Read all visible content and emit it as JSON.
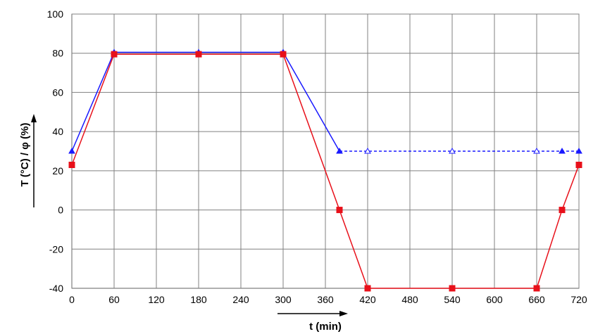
{
  "chart_data": {
    "type": "line",
    "title": "",
    "xlabel": "t (min)",
    "ylabel": "T (°C) / φ (%)",
    "xlim": [
      0,
      720
    ],
    "ylim": [
      -40,
      100
    ],
    "xticks": [
      0,
      60,
      120,
      180,
      240,
      300,
      360,
      420,
      480,
      540,
      600,
      660,
      720
    ],
    "yticks": [
      -40,
      -20,
      0,
      20,
      40,
      60,
      80,
      100
    ],
    "grid": true,
    "legend": "none",
    "series": [
      {
        "color": "#1a1aff",
        "marker": "triangle",
        "segments": [
          {
            "style": "solid",
            "x": [
              0,
              60,
              180,
              300,
              380
            ],
            "y": [
              30,
              80.5,
              80.5,
              80.5,
              30
            ]
          },
          {
            "style": "dashed",
            "x": [
              380,
              420,
              540,
              660,
              696,
              720
            ],
            "y": [
              30,
              30,
              30,
              30,
              30,
              30
            ]
          }
        ],
        "points": [
          {
            "x": 0,
            "y": 30,
            "filled": true
          },
          {
            "x": 60,
            "y": 80.5,
            "filled": true
          },
          {
            "x": 180,
            "y": 80.5,
            "filled": true
          },
          {
            "x": 300,
            "y": 80.5,
            "filled": true
          },
          {
            "x": 380,
            "y": 30,
            "filled": true
          },
          {
            "x": 420,
            "y": 30,
            "filled": false
          },
          {
            "x": 540,
            "y": 30,
            "filled": false
          },
          {
            "x": 660,
            "y": 30,
            "filled": false
          },
          {
            "x": 696,
            "y": 30,
            "filled": true
          },
          {
            "x": 720,
            "y": 30,
            "filled": true
          }
        ]
      },
      {
        "color": "#e8101a",
        "marker": "square",
        "segments": [
          {
            "style": "solid",
            "x": [
              0,
              60,
              180,
              300,
              380,
              420,
              540,
              660,
              696,
              720
            ],
            "y": [
              23,
              79.5,
              79.5,
              79.5,
              0,
              -40,
              -40,
              -40,
              0,
              23
            ]
          }
        ],
        "points": [
          {
            "x": 0,
            "y": 23,
            "filled": true
          },
          {
            "x": 60,
            "y": 79.5,
            "filled": true
          },
          {
            "x": 180,
            "y": 79.5,
            "filled": true
          },
          {
            "x": 300,
            "y": 79.5,
            "filled": true
          },
          {
            "x": 380,
            "y": 0,
            "filled": true
          },
          {
            "x": 420,
            "y": -40,
            "filled": true
          },
          {
            "x": 540,
            "y": -40,
            "filled": true
          },
          {
            "x": 660,
            "y": -40,
            "filled": true
          },
          {
            "x": 696,
            "y": 0,
            "filled": true
          },
          {
            "x": 720,
            "y": 23,
            "filled": true
          }
        ]
      }
    ]
  }
}
